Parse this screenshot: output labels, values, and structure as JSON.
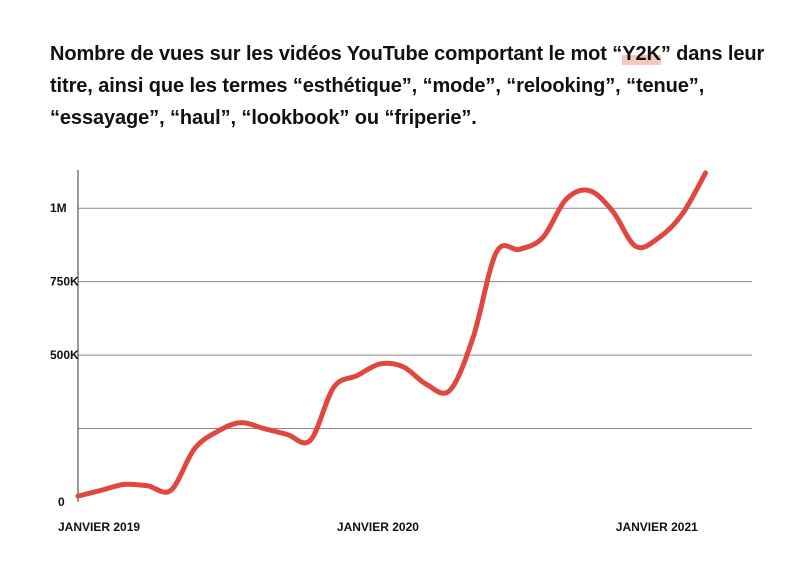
{
  "title": {
    "before": "Nombre de vues sur les vidéos YouTube comportant le mot “",
    "highlight": "Y2K",
    "after": "” dans leur titre, ainsi que les termes “esthétique”, “mode”, “relooking”, “tenue”, “essayage”, “haul”, “lookbook” ou “friperie”."
  },
  "colors": {
    "line": "#e0483f",
    "grid": "#8a8a8a",
    "axis": "#333333",
    "highlight": "#f6c7c1"
  },
  "chart_data": {
    "type": "line",
    "title": "Nombre de vues sur les vidéos YouTube comportant le mot “Y2K” dans leur titre, ainsi que les termes “esthétique”, “mode”, “relooking”, “tenue”, “essayage”, “haul”, “lookbook” ou “friperie”.",
    "xlabel": "",
    "ylabel": "",
    "xlim": [
      "2019-01",
      "2021-06"
    ],
    "ylim": [
      0,
      1130000
    ],
    "grid": "horizontal",
    "y_ticks": [
      0,
      500000,
      1000000
    ],
    "y_tick_labels": [
      "0",
      "500K",
      "1M"
    ],
    "y_gridlines": [
      250000,
      500000,
      750000,
      1000000
    ],
    "y_gridline_labels": [
      "",
      "500K",
      "750K",
      "1M"
    ],
    "x_tick_labels": [
      {
        "x": "2019-01",
        "label": "JANVIER 2019"
      },
      {
        "x": "2020-01",
        "label": "JANVIER 2020"
      },
      {
        "x": "2021-01",
        "label": "JANVIER 2021"
      }
    ],
    "series": [
      {
        "x": [
          "2019-01",
          "2019-02",
          "2019-03",
          "2019-04",
          "2019-05",
          "2019-06",
          "2019-07",
          "2019-08",
          "2019-09",
          "2019-10",
          "2019-11",
          "2019-12",
          "2020-01",
          "2020-02",
          "2020-03",
          "2020-04",
          "2020-05",
          "2020-06",
          "2020-07",
          "2020-08",
          "2020-09",
          "2020-10",
          "2020-11",
          "2020-12",
          "2021-01",
          "2021-02",
          "2021-03",
          "2021-04"
        ],
        "values": [
          20000,
          40000,
          60000,
          55000,
          40000,
          180000,
          240000,
          270000,
          250000,
          230000,
          210000,
          390000,
          430000,
          470000,
          460000,
          400000,
          380000,
          560000,
          850000,
          860000,
          900000,
          1030000,
          1060000,
          990000,
          870000,
          900000,
          980000,
          1120000
        ]
      }
    ]
  }
}
